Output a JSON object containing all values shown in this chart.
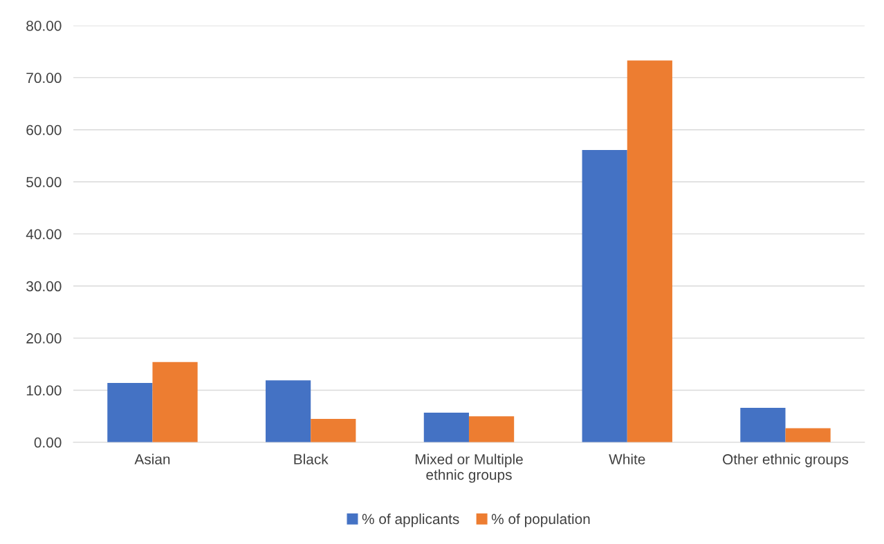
{
  "chart_data": {
    "type": "bar",
    "categories": [
      "Asian",
      "Black",
      "Mixed or Multiple\nethnic groups",
      "White",
      "Other ethnic groups"
    ],
    "series": [
      {
        "name": "% of applicants",
        "color": "#4472c4",
        "values": [
          11.4,
          11.9,
          5.7,
          56.1,
          6.6
        ]
      },
      {
        "name": "% of population",
        "color": "#ed7d31",
        "values": [
          15.4,
          4.5,
          5.0,
          73.3,
          2.7
        ]
      }
    ],
    "ylim": [
      0,
      80
    ],
    "yticks": [
      {
        "value": 0,
        "label": "0.00"
      },
      {
        "value": 10,
        "label": "10.00"
      },
      {
        "value": 20,
        "label": "20.00"
      },
      {
        "value": 30,
        "label": "30.00"
      },
      {
        "value": 40,
        "label": "40.00"
      },
      {
        "value": 50,
        "label": "50.00"
      },
      {
        "value": 60,
        "label": "60.00"
      },
      {
        "value": 70,
        "label": "70.00"
      },
      {
        "value": 80,
        "label": "80.00"
      }
    ],
    "grid": "y",
    "legend": "bottom"
  }
}
